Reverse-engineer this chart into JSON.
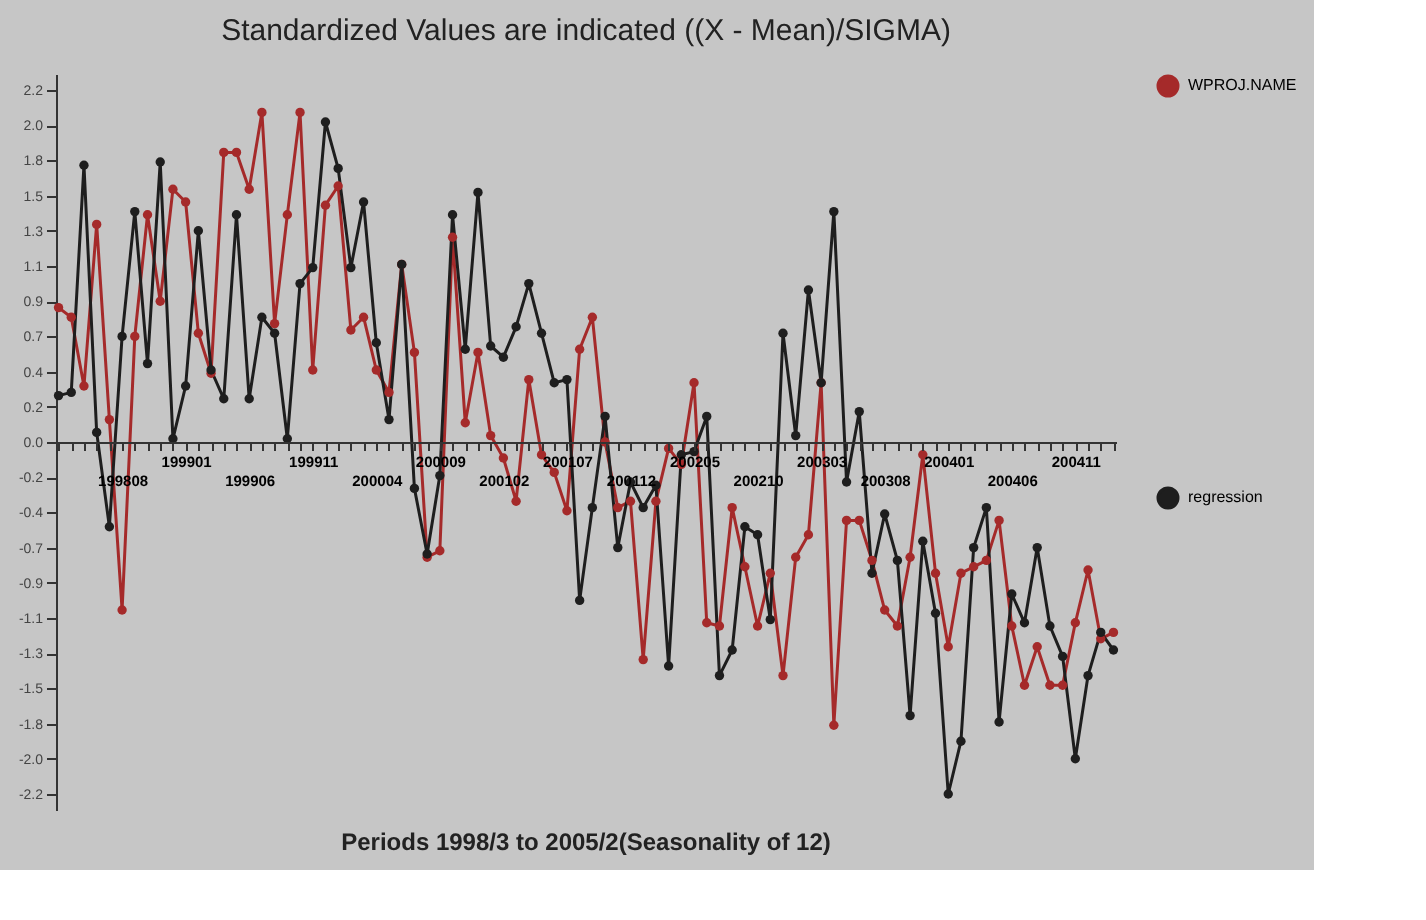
{
  "chart_data": {
    "type": "line",
    "title": "Standardized Values are indicated  ((X - Mean)/SIGMA)",
    "xlabel": "Periods 1998/3 to 2005/2(Seasonality of 12)",
    "categories": [
      null,
      null,
      null,
      null,
      null,
      "199808",
      null,
      null,
      null,
      null,
      "199901",
      null,
      null,
      null,
      null,
      "199906",
      null,
      null,
      null,
      null,
      "199911",
      null,
      null,
      null,
      null,
      "200004",
      null,
      null,
      null,
      null,
      "200009",
      null,
      null,
      null,
      null,
      "200102",
      null,
      null,
      null,
      null,
      "200107",
      null,
      null,
      null,
      null,
      "200112",
      null,
      null,
      null,
      null,
      "200205",
      null,
      null,
      null,
      null,
      "200210",
      null,
      null,
      null,
      null,
      "200303",
      null,
      null,
      null,
      null,
      "200308",
      null,
      null,
      null,
      null,
      "200401",
      null,
      null,
      null,
      null,
      "200406",
      null,
      null,
      null,
      null,
      "200411",
      null,
      null,
      null
    ],
    "series": [
      {
        "name": "WPROJ.NAME",
        "color": "#a52a2a",
        "values": [
          0.84,
          0.78,
          0.35,
          1.36,
          0.14,
          -1.05,
          0.66,
          1.42,
          0.88,
          1.58,
          1.5,
          0.68,
          0.43,
          1.81,
          1.81,
          1.58,
          2.06,
          0.74,
          1.42,
          2.06,
          0.45,
          1.48,
          1.6,
          0.7,
          0.78,
          0.45,
          0.31,
          1.11,
          0.56,
          -0.72,
          -0.68,
          1.28,
          0.12,
          0.56,
          0.04,
          -0.1,
          -0.37,
          0.39,
          -0.08,
          -0.19,
          -0.43,
          0.58,
          0.78,
          0.0,
          -0.41,
          -0.37,
          -1.36,
          -0.37,
          -0.04,
          -0.14,
          0.37,
          -1.13,
          -1.15,
          -0.41,
          -0.78,
          -1.15,
          -0.82,
          -1.46,
          -0.72,
          -0.58,
          0.37,
          -1.77,
          -0.49,
          -0.49,
          -0.74,
          -1.05,
          -1.15,
          -0.72,
          -0.08,
          -0.82,
          -1.28,
          -0.82,
          -0.78,
          -0.74,
          -0.49,
          -1.15,
          -1.52,
          -1.28,
          -1.52,
          -1.52,
          -1.13,
          -0.8,
          -1.23,
          -1.19
        ]
      },
      {
        "name": "regression",
        "color": "#1e1e1e",
        "values": [
          0.29,
          0.31,
          1.73,
          0.06,
          -0.53,
          0.66,
          1.44,
          0.49,
          1.75,
          0.02,
          0.35,
          1.32,
          0.45,
          0.27,
          1.42,
          0.27,
          0.78,
          0.68,
          0.02,
          0.99,
          1.09,
          2.0,
          1.71,
          1.09,
          1.5,
          0.62,
          0.14,
          1.11,
          -0.29,
          -0.7,
          -0.21,
          1.42,
          0.58,
          1.56,
          0.6,
          0.53,
          0.72,
          0.99,
          0.68,
          0.37,
          0.39,
          -0.99,
          -0.41,
          0.16,
          -0.66,
          -0.25,
          -0.41,
          -0.27,
          -1.4,
          -0.08,
          -0.06,
          0.16,
          -1.46,
          -1.3,
          -0.53,
          -0.58,
          -1.11,
          0.68,
          0.04,
          0.95,
          0.37,
          1.44,
          -0.25,
          0.19,
          -0.82,
          -0.45,
          -0.74,
          -1.71,
          -0.62,
          -1.07,
          -2.2,
          -1.87,
          -0.66,
          -0.41,
          -1.75,
          -0.95,
          -1.13,
          -0.66,
          -1.15,
          -1.34,
          -1.98,
          -1.46,
          -1.19,
          -1.3
        ]
      }
    ],
    "ylim": [
      -2.3,
      2.3
    ],
    "yticks": [
      {
        "value": 2.2,
        "label": "2.2"
      },
      {
        "value": 1.98,
        "label": "2.0"
      },
      {
        "value": 1.76,
        "label": "1.8"
      },
      {
        "value": 1.54,
        "label": "1.5"
      },
      {
        "value": 1.32,
        "label": "1.3"
      },
      {
        "value": 1.1,
        "label": "1.1"
      },
      {
        "value": 0.88,
        "label": "0.9"
      },
      {
        "value": 0.66,
        "label": "0.7"
      },
      {
        "value": 0.44,
        "label": "0.4"
      },
      {
        "value": 0.22,
        "label": "0.2"
      },
      {
        "value": 0,
        "label": "0.0"
      },
      {
        "value": -0.22,
        "label": "-0.2"
      },
      {
        "value": -0.44,
        "label": "-0.4"
      },
      {
        "value": -0.66,
        "label": "-0.7"
      },
      {
        "value": -0.88,
        "label": "-0.9"
      },
      {
        "value": -1.1,
        "label": "-1.1"
      },
      {
        "value": -1.32,
        "label": "-1.3"
      },
      {
        "value": -1.54,
        "label": "-1.5"
      },
      {
        "value": -1.76,
        "label": "-1.8"
      },
      {
        "value": -1.98,
        "label": "-2.0"
      },
      {
        "value": -2.2,
        "label": "-2.2"
      }
    ],
    "grid": false,
    "legend": "right",
    "marker": "circle",
    "line_style": "solid"
  }
}
